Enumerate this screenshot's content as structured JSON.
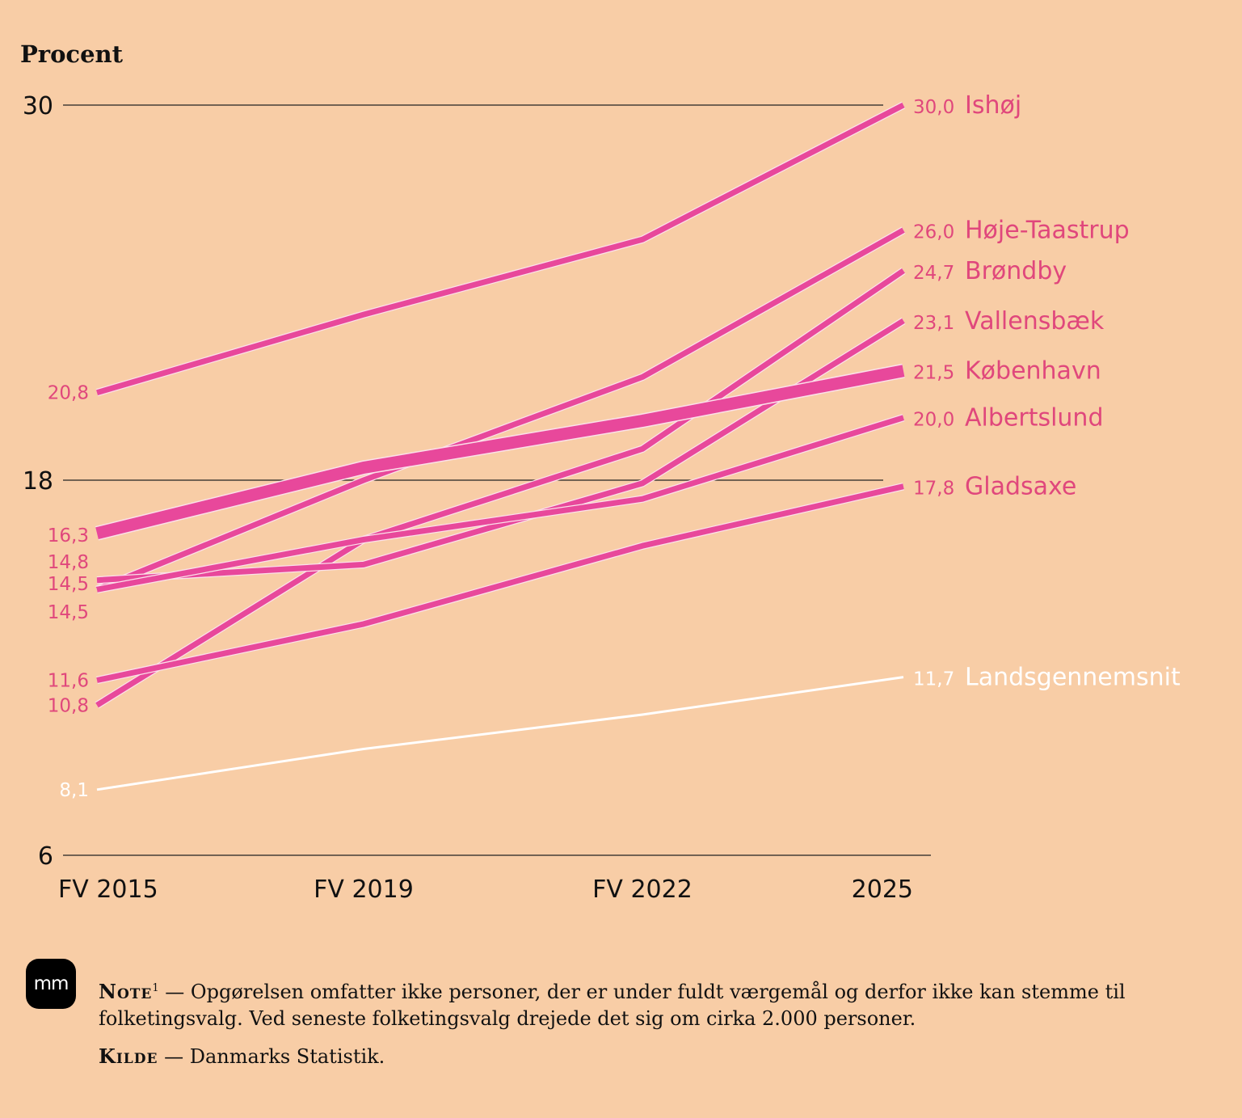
{
  "chart_data": {
    "type": "line",
    "ylabel": "Procent",
    "ylim": [
      6,
      30
    ],
    "yticks": [
      6,
      18,
      30
    ],
    "x": [
      "FV 2015",
      "FV 2019",
      "FV 2022",
      "2025"
    ],
    "grid": "horizontal lines at y ticks",
    "series": [
      {
        "name": "Ishøj",
        "values": [
          20.8,
          23.3,
          25.7,
          30.0
        ],
        "start_label": "20,8",
        "end_label": "30,0",
        "color": "#e8489b"
      },
      {
        "name": "Høje-Taastrup",
        "values": [
          14.5,
          18.0,
          21.3,
          26.0
        ],
        "start_label": "14,5",
        "end_label": "26,0",
        "color": "#e8489b"
      },
      {
        "name": "Brøndby",
        "values": [
          10.8,
          16.1,
          19.0,
          24.7
        ],
        "start_label": "10,8",
        "end_label": "24,7",
        "color": "#e8489b"
      },
      {
        "name": "Vallensbæk",
        "values": [
          14.8,
          15.3,
          17.9,
          23.1
        ],
        "start_label": "14,8",
        "end_label": "23,1",
        "color": "#e8489b"
      },
      {
        "name": "København",
        "values": [
          16.3,
          18.4,
          19.9,
          21.5
        ],
        "start_label": "16,3",
        "end_label": "21,5",
        "color": "#e8489b"
      },
      {
        "name": "Albertslund",
        "values": [
          14.5,
          16.1,
          17.4,
          20.0
        ],
        "start_label": "14,5",
        "end_label": "20,0",
        "color": "#e8489b"
      },
      {
        "name": "Gladsaxe",
        "values": [
          11.6,
          13.4,
          15.9,
          17.8
        ],
        "start_label": "11,6",
        "end_label": "17,8",
        "color": "#e8489b"
      },
      {
        "name": "Landsgennemsnit",
        "values": [
          8.1,
          9.4,
          10.5,
          11.7
        ],
        "start_label": "8,1",
        "end_label": "11,7",
        "color": "#ffffff"
      }
    ],
    "end_label_color": "#e0477c",
    "highlight_series": "København"
  },
  "footer": {
    "logo_text": "mm",
    "note_lead": "Note",
    "note_sup": "1",
    "note_dash": "—",
    "note_text": "Opgørelsen omfatter ikke personer, der er under fuldt værgemål og derfor ikke kan stemme til folketingsvalg. Ved seneste folketingsvalg drejede det sig om cirka 2.000 personer.",
    "source_lead": "Kilde",
    "source_dash": "—",
    "source_text": "Danmarks Statistik."
  }
}
